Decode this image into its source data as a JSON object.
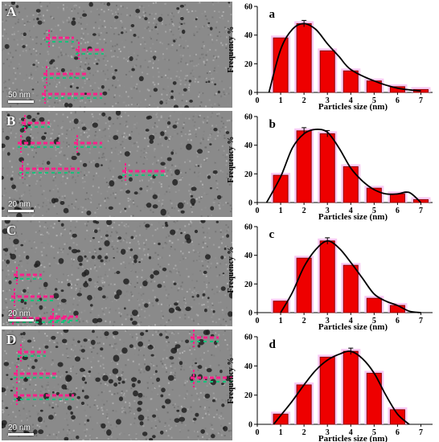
{
  "colors": {
    "bar": "#ee0000",
    "bar_edge": "#8b0000",
    "bar_glow": "#f5b8f0",
    "curve": "#000000",
    "tem_background": "#8a8a8a",
    "tem_particle": "#202020",
    "overlay_green": "#16c27a",
    "overlay_pink": "#ff1f8a"
  },
  "tem_panels": [
    {
      "letter": "A",
      "scale_label": "50 nm"
    },
    {
      "letter": "B",
      "scale_label": "20 nm"
    },
    {
      "letter": "C",
      "scale_label": "20 nm"
    },
    {
      "letter": "D",
      "scale_label": "20 nm"
    }
  ],
  "chart_data": [
    {
      "type": "bar",
      "panel_letter": "a",
      "categories": [
        "1",
        "2",
        "3",
        "4",
        "5",
        "6",
        "7"
      ],
      "values": [
        38,
        48,
        29,
        15,
        8,
        4,
        2
      ],
      "error_bars_on": [
        2
      ],
      "fit_curve": [
        [
          0.5,
          0
        ],
        [
          1,
          30
        ],
        [
          1.5,
          44
        ],
        [
          2,
          48
        ],
        [
          2.5,
          44
        ],
        [
          3,
          34
        ],
        [
          3.5,
          25
        ],
        [
          4,
          16
        ],
        [
          5,
          8
        ],
        [
          6,
          3
        ],
        [
          7,
          1
        ]
      ],
      "xlabel": "Particles size (nm)",
      "ylabel": "Frequency %",
      "xticks": [
        0,
        1,
        2,
        3,
        4,
        5,
        6,
        7
      ],
      "yticks": [
        0,
        20,
        40,
        60
      ],
      "xlim": [
        0,
        7.5
      ],
      "ylim": [
        0,
        60
      ],
      "grid": false
    },
    {
      "type": "bar",
      "panel_letter": "b",
      "categories": [
        "1",
        "2",
        "3",
        "4",
        "5",
        "6",
        "7"
      ],
      "values": [
        19,
        50,
        48,
        25,
        10,
        6,
        2
      ],
      "error_bars_on": [
        2,
        3
      ],
      "fit_curve": [
        [
          0.4,
          0
        ],
        [
          1,
          18
        ],
        [
          1.5,
          38
        ],
        [
          2,
          48
        ],
        [
          2.5,
          51
        ],
        [
          3,
          49
        ],
        [
          3.5,
          38
        ],
        [
          4,
          24
        ],
        [
          4.5,
          15
        ],
        [
          5,
          9
        ],
        [
          5.5,
          6
        ],
        [
          6,
          6
        ],
        [
          6.5,
          7
        ],
        [
          7,
          0
        ]
      ],
      "xlabel": "Particles size (nm)",
      "ylabel": "Frequency %",
      "xticks": [
        0,
        1,
        2,
        3,
        4,
        5,
        6,
        7
      ],
      "yticks": [
        0,
        20,
        40,
        60
      ],
      "xlim": [
        0,
        7.5
      ],
      "ylim": [
        0,
        60
      ],
      "grid": false
    },
    {
      "type": "bar",
      "panel_letter": "c",
      "categories": [
        "1",
        "2",
        "3",
        "4",
        "5",
        "6"
      ],
      "values": [
        8,
        38,
        50,
        33,
        10,
        5
      ],
      "error_bars_on": [
        3
      ],
      "fit_curve": [
        [
          1,
          0
        ],
        [
          1.5,
          14
        ],
        [
          2,
          32
        ],
        [
          2.5,
          44
        ],
        [
          3,
          50
        ],
        [
          3.5,
          45
        ],
        [
          4,
          35
        ],
        [
          4.5,
          24
        ],
        [
          5,
          13
        ],
        [
          5.5,
          8
        ],
        [
          6,
          5
        ],
        [
          6.5,
          1
        ],
        [
          7,
          0
        ]
      ],
      "xlabel": "Particles size (nm)",
      "ylabel": "Frequency %",
      "xticks": [
        0,
        1,
        2,
        3,
        4,
        5,
        6,
        7
      ],
      "yticks": [
        0,
        20,
        40,
        60
      ],
      "xlim": [
        0,
        7.5
      ],
      "ylim": [
        0,
        60
      ],
      "grid": false
    },
    {
      "type": "bar",
      "panel_letter": "d",
      "categories": [
        "1",
        "2",
        "3",
        "4",
        "5",
        "6"
      ],
      "values": [
        7,
        27,
        46,
        50,
        35,
        10
      ],
      "error_bars_on": [
        4
      ],
      "fit_curve": [
        [
          0.7,
          0
        ],
        [
          1,
          6
        ],
        [
          1.5,
          16
        ],
        [
          2,
          27
        ],
        [
          2.5,
          37
        ],
        [
          3,
          44
        ],
        [
          3.5,
          48
        ],
        [
          4,
          50
        ],
        [
          4.5,
          45
        ],
        [
          5,
          35
        ],
        [
          5.5,
          20
        ],
        [
          6,
          7
        ],
        [
          6.5,
          0
        ]
      ],
      "xlabel": "Particles size (nm)",
      "ylabel": "Frequency %",
      "xticks": [
        0,
        1,
        2,
        3,
        4,
        5,
        6,
        7
      ],
      "yticks": [
        0,
        20,
        40,
        60
      ],
      "xlim": [
        0,
        7.5
      ],
      "ylim": [
        0,
        60
      ],
      "grid": false
    }
  ]
}
